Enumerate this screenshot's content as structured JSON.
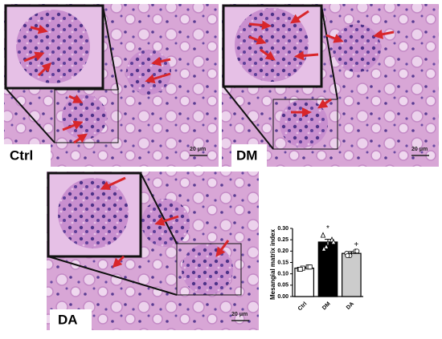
{
  "panels": [
    {
      "label": "Ctrl",
      "scale_bar": "20 μm"
    },
    {
      "label": "DM",
      "scale_bar": "20 μm"
    },
    {
      "label": "DA",
      "scale_bar": "20 μm"
    }
  ],
  "chart_data": {
    "type": "bar",
    "y_label": "Mesangial matrix index",
    "categories": [
      "Ctrl",
      "DM",
      "DA"
    ],
    "values": [
      0.125,
      0.24,
      0.19
    ],
    "errors": [
      0.005,
      0.012,
      0.008
    ],
    "colors": [
      "#ffffff",
      "#000000",
      "#cccccc"
    ],
    "annotations": [
      null,
      "*",
      "+"
    ],
    "points": [
      [
        0.12,
        0.13,
        0.125,
        0.13,
        0.12
      ],
      [
        0.27,
        0.25,
        0.22,
        0.24,
        0.21
      ],
      [
        0.19,
        0.2,
        0.18,
        0.2,
        0.18
      ]
    ],
    "point_markers": [
      "square",
      "triangle",
      "circle"
    ],
    "ylim": [
      0,
      0.3
    ],
    "yticks": [
      {
        "value": 0,
        "label": "0.00"
      },
      {
        "value": 0.05,
        "label": "0.05"
      },
      {
        "value": 0.1,
        "label": "0.10"
      },
      {
        "value": 0.15,
        "label": "0.15"
      },
      {
        "value": 0.2,
        "label": "0.20"
      },
      {
        "value": 0.25,
        "label": "0.25"
      },
      {
        "value": 0.3,
        "label": "0.30"
      }
    ]
  }
}
